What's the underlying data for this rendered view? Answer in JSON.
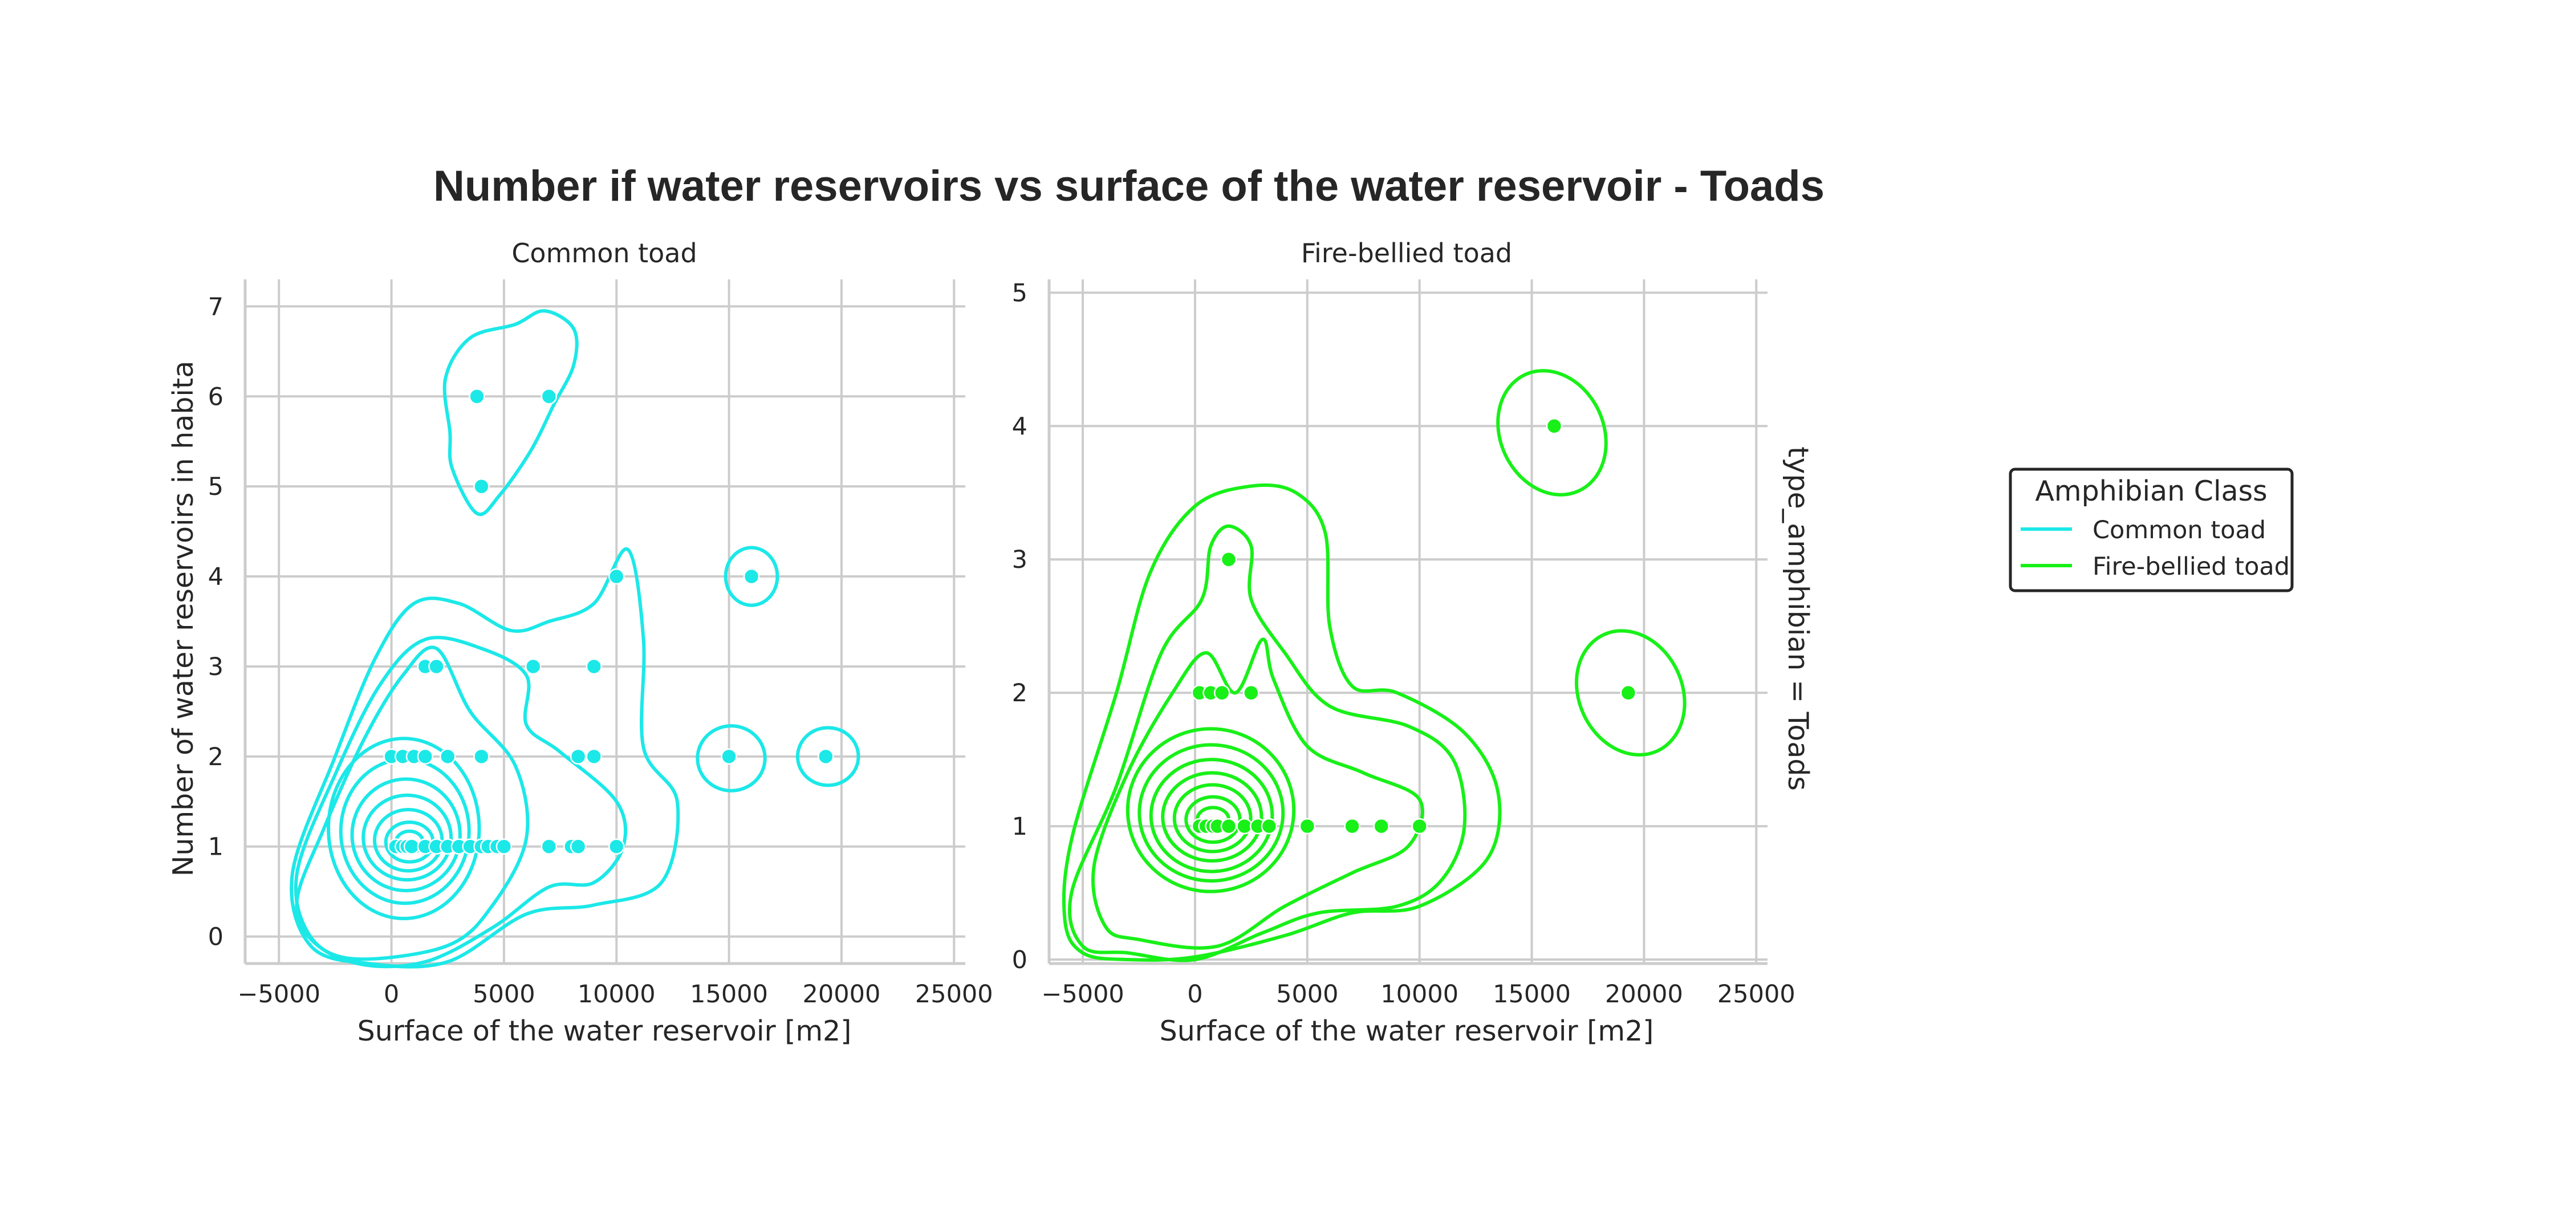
{
  "title": "Number if water reservoirs vs surface of the water reservoir - Toads",
  "row_label": "type_amphibian = Toads",
  "legend": {
    "title": "Amphibian Class",
    "items": [
      {
        "label": "Common toad",
        "color": "#1ce8e8"
      },
      {
        "label": "Fire-bellied toad",
        "color": "#18f018"
      }
    ]
  },
  "chart_data": [
    {
      "type": "scatter",
      "title": "Common toad",
      "xlabel": "Surface of the water reservoir [m2]",
      "ylabel": "Number of water reservoirs in habita",
      "xlim": [
        -6500,
        25500
      ],
      "ylim": [
        -0.3,
        7.3
      ],
      "xticks": [
        -5000,
        0,
        5000,
        10000,
        15000,
        20000,
        25000
      ],
      "yticks": [
        0,
        1,
        2,
        3,
        4,
        5,
        6,
        7
      ],
      "grid": true,
      "color": "#1ce8e8",
      "points": [
        [
          200,
          1
        ],
        [
          500,
          1
        ],
        [
          700,
          1
        ],
        [
          900,
          1
        ],
        [
          1500,
          1
        ],
        [
          2000,
          1
        ],
        [
          2500,
          1
        ],
        [
          3000,
          1
        ],
        [
          3500,
          1
        ],
        [
          4000,
          1
        ],
        [
          4300,
          1
        ],
        [
          4700,
          1
        ],
        [
          5000,
          1
        ],
        [
          7000,
          1
        ],
        [
          8000,
          1
        ],
        [
          8300,
          1
        ],
        [
          10000,
          1
        ],
        [
          0,
          2
        ],
        [
          500,
          2
        ],
        [
          1000,
          2
        ],
        [
          1500,
          2
        ],
        [
          2500,
          2
        ],
        [
          4000,
          2
        ],
        [
          8300,
          2
        ],
        [
          9000,
          2
        ],
        [
          15000,
          2
        ],
        [
          19300,
          2
        ],
        [
          1500,
          3
        ],
        [
          2000,
          3
        ],
        [
          6300,
          3
        ],
        [
          9000,
          3
        ],
        [
          10000,
          4
        ],
        [
          16000,
          4
        ],
        [
          4000,
          5
        ],
        [
          3800,
          6
        ],
        [
          7000,
          6
        ]
      ],
      "kde_contours": [
        {
          "level": 1,
          "kind": "closed",
          "center": [
            800,
            1.05
          ],
          "rx": 600,
          "ry": 0.12
        },
        {
          "level": 2,
          "kind": "closed",
          "center": [
            800,
            1.05
          ],
          "rx": 1050,
          "ry": 0.22
        },
        {
          "level": 3,
          "kind": "closed",
          "center": [
            750,
            1.07
          ],
          "rx": 1500,
          "ry": 0.34
        },
        {
          "level": 4,
          "kind": "closed",
          "center": [
            700,
            1.1
          ],
          "rx": 1950,
          "ry": 0.47
        },
        {
          "level": 5,
          "kind": "closed",
          "center": [
            650,
            1.13
          ],
          "rx": 2400,
          "ry": 0.62
        },
        {
          "level": 6,
          "kind": "closed",
          "center": [
            600,
            1.17
          ],
          "rx": 2850,
          "ry": 0.8
        },
        {
          "level": 7,
          "kind": "closed",
          "center": [
            550,
            1.2
          ],
          "rx": 3350,
          "ry": 1.0
        },
        {
          "level": 8,
          "kind": "outline",
          "points": [
            [
              -1500,
              -0.25
            ],
            [
              2500,
              -0.1
            ],
            [
              4500,
              0.35
            ],
            [
              6000,
              1.1
            ],
            [
              5500,
              1.9
            ],
            [
              3500,
              2.5
            ],
            [
              2000,
              3.2
            ],
            [
              500,
              2.9
            ],
            [
              -1200,
              2.2
            ],
            [
              -3000,
              1.2
            ],
            [
              -4200,
              0.4
            ],
            [
              -3500,
              -0.05
            ]
          ]
        },
        {
          "level": 9,
          "kind": "outline",
          "points": [
            [
              -1500,
              -0.3
            ],
            [
              1500,
              -0.28
            ],
            [
              4500,
              0.1
            ],
            [
              7000,
              0.55
            ],
            [
              9000,
              0.6
            ],
            [
              10300,
              1.0
            ],
            [
              10000,
              1.5
            ],
            [
              7500,
              2.05
            ],
            [
              6000,
              2.35
            ],
            [
              6000,
              2.9
            ],
            [
              4000,
              3.2
            ],
            [
              1500,
              3.3
            ],
            [
              -500,
              2.8
            ],
            [
              -2500,
              1.8
            ],
            [
              -4200,
              0.7
            ],
            [
              -3600,
              0.0
            ]
          ]
        },
        {
          "level": 10,
          "kind": "outline",
          "points": [
            [
              -1000,
              -0.3
            ],
            [
              2500,
              -0.28
            ],
            [
              6000,
              0.25
            ],
            [
              9000,
              0.35
            ],
            [
              12000,
              0.6
            ],
            [
              12700,
              1.5
            ],
            [
              11200,
              2.1
            ],
            [
              11200,
              3.3
            ],
            [
              10500,
              4.3
            ],
            [
              9000,
              3.7
            ],
            [
              7000,
              3.5
            ],
            [
              5300,
              3.4
            ],
            [
              3000,
              3.7
            ],
            [
              1000,
              3.7
            ],
            [
              -700,
              3.1
            ],
            [
              -2500,
              2.0
            ],
            [
              -4400,
              0.7
            ],
            [
              -3600,
              -0.1
            ]
          ]
        },
        {
          "level": 11,
          "kind": "outline",
          "points": [
            [
              2700,
              5.2
            ],
            [
              3800,
              4.7
            ],
            [
              4800,
              4.9
            ],
            [
              6200,
              5.4
            ],
            [
              7200,
              5.9
            ],
            [
              8100,
              6.35
            ],
            [
              8100,
              6.75
            ],
            [
              6800,
              6.95
            ],
            [
              5500,
              6.8
            ],
            [
              3500,
              6.65
            ],
            [
              2400,
              6.2
            ],
            [
              2600,
              5.6
            ]
          ]
        },
        {
          "level": 12,
          "kind": "closed",
          "center": [
            16000,
            4.0
          ],
          "rx": 1150,
          "ry": 0.32
        },
        {
          "level": 13,
          "kind": "closed",
          "center": [
            15100,
            1.98
          ],
          "rx": 1500,
          "ry": 0.36
        },
        {
          "level": 14,
          "kind": "closed",
          "center": [
            19400,
            2.0
          ],
          "rx": 1350,
          "ry": 0.32
        }
      ]
    },
    {
      "type": "scatter",
      "title": "Fire-bellied toad",
      "xlabel": "Surface of the water reservoir [m2]",
      "ylabel": "",
      "xlim": [
        -6500,
        25500
      ],
      "ylim": [
        -0.03,
        5.1
      ],
      "xticks": [
        -5000,
        0,
        5000,
        10000,
        15000,
        20000,
        25000
      ],
      "yticks": [
        0,
        1,
        2,
        3,
        4,
        5
      ],
      "grid": true,
      "color": "#18f018",
      "points": [
        [
          200,
          1
        ],
        [
          500,
          1
        ],
        [
          800,
          1
        ],
        [
          1000,
          1
        ],
        [
          1500,
          1
        ],
        [
          2200,
          1
        ],
        [
          2800,
          1
        ],
        [
          3300,
          1
        ],
        [
          5000,
          1
        ],
        [
          7000,
          1
        ],
        [
          8300,
          1
        ],
        [
          10000,
          1
        ],
        [
          200,
          2
        ],
        [
          700,
          2
        ],
        [
          1200,
          2
        ],
        [
          2500,
          2
        ],
        [
          19300,
          2
        ],
        [
          1500,
          3
        ],
        [
          16000,
          4
        ]
      ],
      "kde_contours": [
        {
          "level": 1,
          "kind": "closed",
          "center": [
            800,
            1.05
          ],
          "rx": 700,
          "ry": 0.09
        },
        {
          "level": 2,
          "kind": "closed",
          "center": [
            800,
            1.05
          ],
          "rx": 1200,
          "ry": 0.17
        },
        {
          "level": 3,
          "kind": "closed",
          "center": [
            780,
            1.06
          ],
          "rx": 1700,
          "ry": 0.25
        },
        {
          "level": 4,
          "kind": "closed",
          "center": [
            760,
            1.07
          ],
          "rx": 2200,
          "ry": 0.33
        },
        {
          "level": 5,
          "kind": "closed",
          "center": [
            740,
            1.08
          ],
          "rx": 2700,
          "ry": 0.42
        },
        {
          "level": 6,
          "kind": "closed",
          "center": [
            720,
            1.1
          ],
          "rx": 3200,
          "ry": 0.51
        },
        {
          "level": 7,
          "kind": "closed",
          "center": [
            700,
            1.12
          ],
          "rx": 3700,
          "ry": 0.61
        },
        {
          "level": 8,
          "kind": "outline",
          "points": [
            [
              -2500,
              0.15
            ],
            [
              1000,
              0.1
            ],
            [
              4000,
              0.4
            ],
            [
              7000,
              0.65
            ],
            [
              9500,
              0.85
            ],
            [
              10000,
              1.2
            ],
            [
              7500,
              1.4
            ],
            [
              5000,
              1.6
            ],
            [
              3500,
              2.1
            ],
            [
              3000,
              2.4
            ],
            [
              1800,
              2.0
            ],
            [
              500,
              2.3
            ],
            [
              -1000,
              2.0
            ],
            [
              -3000,
              1.4
            ],
            [
              -4500,
              0.7
            ],
            [
              -4000,
              0.25
            ]
          ]
        },
        {
          "level": 9,
          "kind": "outline",
          "points": [
            [
              -3000,
              0.05
            ],
            [
              0,
              0.0
            ],
            [
              3000,
              0.2
            ],
            [
              5500,
              0.35
            ],
            [
              9000,
              0.4
            ],
            [
              11000,
              0.6
            ],
            [
              12000,
              1.0
            ],
            [
              11500,
              1.5
            ],
            [
              9500,
              1.75
            ],
            [
              6000,
              1.9
            ],
            [
              4000,
              2.3
            ],
            [
              2500,
              2.7
            ],
            [
              2500,
              3.1
            ],
            [
              1500,
              3.25
            ],
            [
              700,
              3.1
            ],
            [
              300,
              2.7
            ],
            [
              -1500,
              2.3
            ],
            [
              -3500,
              1.3
            ],
            [
              -5500,
              0.5
            ],
            [
              -5000,
              0.1
            ]
          ]
        },
        {
          "level": 10,
          "kind": "outline",
          "points": [
            [
              -3000,
              0.0
            ],
            [
              0,
              0.02
            ],
            [
              4000,
              0.18
            ],
            [
              7000,
              0.35
            ],
            [
              10000,
              0.4
            ],
            [
              13000,
              0.75
            ],
            [
              13500,
              1.25
            ],
            [
              12000,
              1.7
            ],
            [
              9000,
              2.0
            ],
            [
              7000,
              2.05
            ],
            [
              6000,
              2.5
            ],
            [
              5800,
              3.2
            ],
            [
              4500,
              3.5
            ],
            [
              2500,
              3.55
            ],
            [
              0,
              3.4
            ],
            [
              -2000,
              2.9
            ],
            [
              -3500,
              2.0
            ],
            [
              -5500,
              0.9
            ],
            [
              -5800,
              0.3
            ],
            [
              -5000,
              0.05
            ]
          ]
        },
        {
          "level": 11,
          "kind": "closed",
          "center": [
            15900,
            3.95
          ],
          "rx": 2300,
          "ry": 0.48,
          "rot": -25
        },
        {
          "level": 12,
          "kind": "closed",
          "center": [
            19400,
            2.0
          ],
          "rx": 2300,
          "ry": 0.48,
          "rot": -25
        }
      ]
    }
  ]
}
